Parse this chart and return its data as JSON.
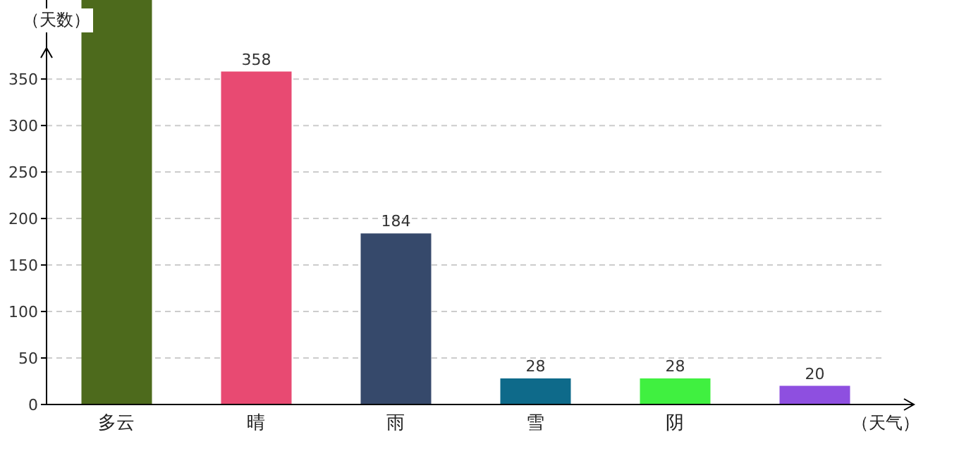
{
  "chart_data": {
    "type": "bar",
    "xlabel": "（天气）",
    "ylabel": "（天数）",
    "categories": [
      "多云",
      "晴",
      "雨",
      "雪",
      "阴",
      null
    ],
    "values": [
      435,
      358,
      184,
      28,
      28,
      20
    ],
    "colors": [
      "#4d6a1c",
      "#e84a72",
      "#36496b",
      "#0e6a8a",
      "#40f040",
      "#8e4fe0"
    ],
    "value_labels": [
      null,
      "358",
      "184",
      "28",
      "28",
      "20"
    ],
    "ylim": [
      0,
      435
    ],
    "yticks": [
      0,
      50,
      100,
      150,
      200,
      250,
      300,
      350
    ],
    "grid": "y"
  }
}
